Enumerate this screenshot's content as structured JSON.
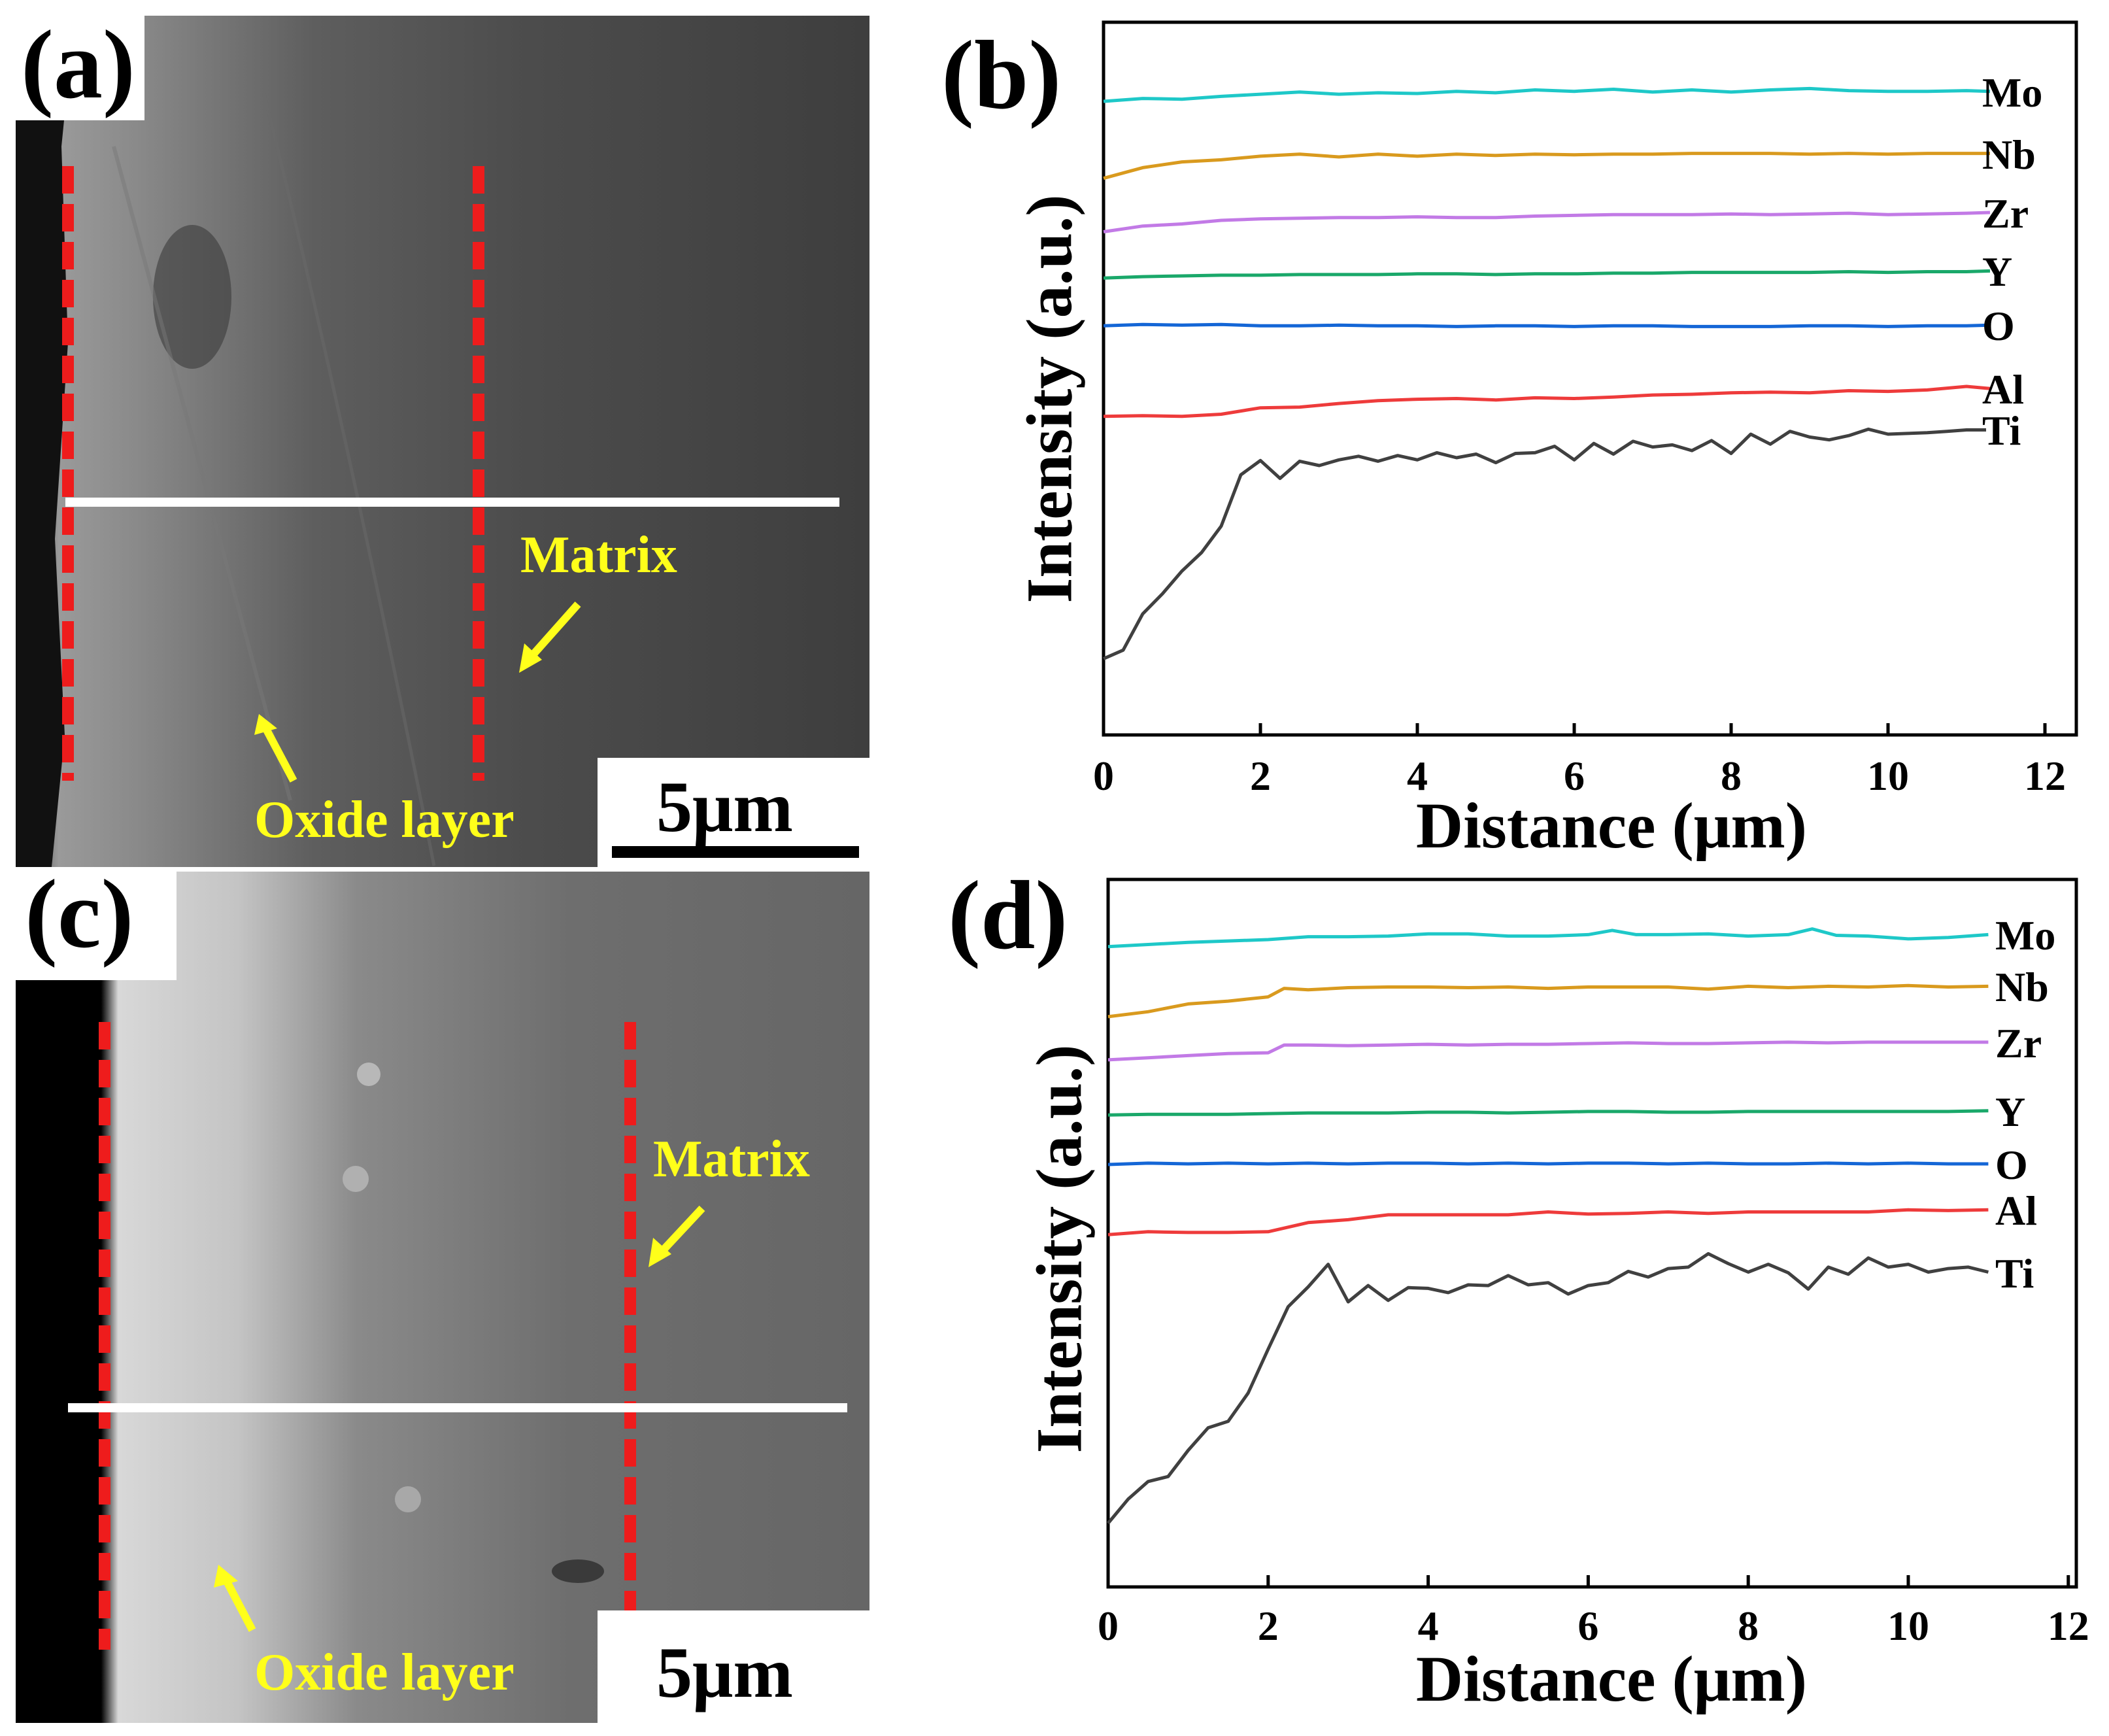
{
  "panels": {
    "a": {
      "label": "(a)",
      "annotations": {
        "matrix": "Matrix",
        "oxide": "Oxide layer"
      },
      "scale_bar": "5μm"
    },
    "c": {
      "label": "(c)",
      "annotations": {
        "matrix": "Matrix",
        "oxide": "Oxide layer"
      },
      "scale_bar": "5μm"
    },
    "b": {
      "label": "(b)"
    },
    "d": {
      "label": "(d)"
    }
  },
  "colors": {
    "Mo": "#1ec8c8",
    "Nb": "#d99a1e",
    "Zr": "#c27ae6",
    "Y": "#1aa86a",
    "O": "#1466d6",
    "Al": "#ee3b3b",
    "Ti": "#404040",
    "annotation": "#ffff1a",
    "dashed_line": "#ee1c1c",
    "scan_line": "#ffffff"
  },
  "chart_data": [
    {
      "id": "b",
      "type": "line",
      "xlabel": "Distance (μm)",
      "ylabel": "Intensity (a.u.)",
      "xlim": [
        0,
        12.4
      ],
      "xticks": [
        0,
        2,
        4,
        6,
        8,
        10,
        12
      ],
      "ylim": [
        0,
        100
      ],
      "series": [
        {
          "name": "Mo",
          "x": [
            0,
            0.5,
            1,
            1.5,
            2,
            2.5,
            3,
            3.5,
            4,
            4.5,
            5,
            5.5,
            6,
            6.5,
            7,
            7.5,
            8,
            8.5,
            9,
            9.5,
            10,
            10.5,
            11,
            11.3
          ],
          "values": [
            88.9,
            89.3,
            89.2,
            89.6,
            89.9,
            90.2,
            89.9,
            90.1,
            90.0,
            90.3,
            90.1,
            90.5,
            90.3,
            90.6,
            90.2,
            90.5,
            90.2,
            90.5,
            90.7,
            90.4,
            90.3,
            90.3,
            90.4,
            90.3
          ]
        },
        {
          "name": "Nb",
          "x": [
            0,
            0.5,
            1,
            1.5,
            2,
            2.5,
            3,
            3.5,
            4,
            4.5,
            5,
            5.5,
            6,
            6.5,
            7,
            7.5,
            8,
            8.5,
            9,
            9.5,
            10,
            10.5,
            11,
            11.3
          ],
          "values": [
            78.1,
            79.6,
            80.4,
            80.7,
            81.2,
            81.5,
            81.1,
            81.5,
            81.2,
            81.5,
            81.3,
            81.5,
            81.4,
            81.5,
            81.5,
            81.6,
            81.6,
            81.6,
            81.5,
            81.6,
            81.5,
            81.6,
            81.6,
            81.6
          ]
        },
        {
          "name": "Zr",
          "x": [
            0,
            0.5,
            1,
            1.5,
            2,
            2.5,
            3,
            3.5,
            4,
            4.5,
            5,
            5.5,
            6,
            6.5,
            7,
            7.5,
            8,
            8.5,
            9,
            9.5,
            10,
            10.5,
            11,
            11.3
          ],
          "values": [
            70.6,
            71.4,
            71.7,
            72.2,
            72.4,
            72.5,
            72.6,
            72.6,
            72.7,
            72.6,
            72.6,
            72.8,
            72.9,
            73.0,
            73.0,
            73.0,
            73.1,
            73.0,
            73.1,
            73.2,
            73.0,
            73.1,
            73.2,
            73.3
          ]
        },
        {
          "name": "Y",
          "x": [
            0,
            0.5,
            1,
            1.5,
            2,
            2.5,
            3,
            3.5,
            4,
            4.5,
            5,
            5.5,
            6,
            6.5,
            7,
            7.5,
            8,
            8.5,
            9,
            9.5,
            10,
            10.5,
            11,
            11.3
          ],
          "values": [
            64.1,
            64.3,
            64.4,
            64.5,
            64.5,
            64.6,
            64.6,
            64.6,
            64.7,
            64.7,
            64.6,
            64.7,
            64.7,
            64.8,
            64.8,
            64.9,
            64.9,
            64.9,
            64.9,
            65.0,
            64.9,
            65.0,
            65.0,
            65.1
          ]
        },
        {
          "name": "O",
          "x": [
            0,
            0.5,
            1,
            1.5,
            2,
            2.5,
            3,
            3.5,
            4,
            4.5,
            5,
            5.5,
            6,
            6.5,
            7,
            7.5,
            8,
            8.5,
            9,
            9.5,
            10,
            10.5,
            11,
            11.3
          ],
          "values": [
            57.4,
            57.6,
            57.5,
            57.6,
            57.4,
            57.4,
            57.5,
            57.4,
            57.4,
            57.3,
            57.4,
            57.4,
            57.3,
            57.4,
            57.4,
            57.3,
            57.3,
            57.3,
            57.4,
            57.4,
            57.3,
            57.4,
            57.4,
            57.5
          ]
        },
        {
          "name": "Al",
          "x": [
            0,
            0.5,
            1,
            1.5,
            2,
            2.5,
            3,
            3.5,
            4,
            4.5,
            5,
            5.5,
            6,
            6.5,
            7,
            7.5,
            8,
            8.5,
            9,
            9.5,
            10,
            10.5,
            11,
            11.3
          ],
          "values": [
            44.7,
            44.8,
            44.7,
            45.0,
            45.9,
            46.0,
            46.5,
            46.9,
            47.1,
            47.2,
            47.0,
            47.3,
            47.2,
            47.4,
            47.7,
            47.8,
            48.0,
            48.1,
            48.0,
            48.3,
            48.2,
            48.4,
            48.9,
            48.6
          ]
        },
        {
          "name": "Ti",
          "x": [
            0,
            0.25,
            0.5,
            0.75,
            1,
            1.25,
            1.5,
            1.75,
            2,
            2.25,
            2.5,
            2.75,
            3,
            3.25,
            3.5,
            3.75,
            4,
            4.25,
            4.5,
            4.75,
            5,
            5.25,
            5.5,
            5.75,
            6,
            6.25,
            6.5,
            6.75,
            7,
            7.25,
            7.5,
            7.75,
            8,
            8.25,
            8.5,
            8.75,
            9,
            9.25,
            9.5,
            9.75,
            10,
            10.25,
            10.5,
            10.75,
            11,
            11.25
          ],
          "values": [
            10.7,
            11.9,
            17.0,
            19.8,
            23.0,
            25.6,
            29.3,
            36.5,
            38.5,
            36.0,
            38.4,
            37.8,
            38.6,
            39.1,
            38.4,
            39.2,
            38.6,
            39.6,
            38.9,
            39.4,
            38.2,
            39.5,
            39.6,
            40.5,
            38.6,
            40.9,
            39.4,
            41.2,
            40.4,
            40.7,
            39.9,
            41.3,
            39.5,
            42.2,
            40.8,
            42.6,
            41.8,
            41.4,
            42.0,
            42.9,
            42.2,
            42.3,
            42.4,
            42.6,
            42.8,
            42.8
          ]
        }
      ]
    },
    {
      "id": "d",
      "type": "line",
      "xlabel": "Distance (μm)",
      "ylabel": "Intensity (a.u.)",
      "xlim": [
        0,
        12.1
      ],
      "xticks": [
        0,
        2,
        4,
        6,
        8,
        10,
        12
      ],
      "ylim": [
        0,
        100
      ],
      "series": [
        {
          "name": "Mo",
          "x": [
            0,
            0.5,
            1,
            1.5,
            2,
            2.5,
            3,
            3.5,
            4,
            4.5,
            5,
            5.5,
            6,
            6.3,
            6.6,
            7,
            7.5,
            8,
            8.5,
            8.8,
            9.1,
            9.5,
            10,
            10.5,
            11
          ],
          "values": [
            90.5,
            90.8,
            91.1,
            91.3,
            91.5,
            91.9,
            91.9,
            92.0,
            92.3,
            92.3,
            92.0,
            92.0,
            92.2,
            92.8,
            92.2,
            92.2,
            92.3,
            92.0,
            92.2,
            93.0,
            92.1,
            92.0,
            91.6,
            91.8,
            92.2
          ]
        },
        {
          "name": "Nb",
          "x": [
            0,
            0.5,
            1,
            1.5,
            2,
            2.2,
            2.5,
            3,
            3.5,
            4,
            4.5,
            5,
            5.5,
            6,
            6.5,
            7,
            7.5,
            8,
            8.5,
            9,
            9.5,
            10,
            10.5,
            11
          ],
          "values": [
            80.6,
            81.3,
            82.4,
            82.8,
            83.4,
            84.6,
            84.4,
            84.7,
            84.8,
            84.8,
            84.7,
            84.8,
            84.6,
            84.8,
            84.8,
            84.8,
            84.5,
            84.9,
            84.7,
            84.9,
            84.8,
            85.0,
            84.8,
            84.9
          ]
        },
        {
          "name": "Zr",
          "x": [
            0,
            0.5,
            1,
            1.5,
            2,
            2.2,
            2.5,
            3,
            3.5,
            4,
            4.5,
            5,
            5.5,
            6,
            6.5,
            7,
            7.5,
            8,
            8.5,
            9,
            9.5,
            10,
            10.5,
            11
          ],
          "values": [
            74.5,
            74.8,
            75.1,
            75.4,
            75.5,
            76.6,
            76.6,
            76.5,
            76.6,
            76.7,
            76.6,
            76.7,
            76.7,
            76.8,
            76.9,
            76.8,
            76.8,
            76.9,
            77.0,
            76.9,
            77.0,
            77.0,
            77.0,
            77.0
          ]
        },
        {
          "name": "Y",
          "x": [
            0,
            0.5,
            1,
            1.5,
            2,
            2.5,
            3,
            3.5,
            4,
            4.5,
            5,
            5.5,
            6,
            6.5,
            7,
            7.5,
            8,
            8.5,
            9,
            9.5,
            10,
            10.5,
            11
          ],
          "values": [
            66.7,
            66.8,
            66.8,
            66.8,
            66.9,
            67.0,
            67.0,
            67.0,
            67.1,
            67.1,
            67.0,
            67.1,
            67.2,
            67.2,
            67.1,
            67.1,
            67.2,
            67.2,
            67.2,
            67.2,
            67.2,
            67.2,
            67.3
          ]
        },
        {
          "name": "O",
          "x": [
            0,
            0.5,
            1,
            1.5,
            2,
            2.5,
            3,
            3.5,
            4,
            4.5,
            5,
            5.5,
            6,
            6.5,
            7,
            7.5,
            8,
            8.5,
            9,
            9.5,
            10,
            10.5,
            11
          ],
          "values": [
            59.7,
            59.9,
            59.8,
            59.9,
            59.8,
            59.9,
            59.8,
            59.9,
            59.9,
            59.8,
            59.9,
            59.8,
            59.9,
            59.9,
            59.8,
            59.9,
            59.8,
            59.8,
            59.9,
            59.8,
            59.9,
            59.8,
            59.8
          ]
        },
        {
          "name": "Al",
          "x": [
            0,
            0.5,
            1,
            1.5,
            2,
            2.5,
            3,
            3.5,
            4,
            4.5,
            5,
            5.5,
            6,
            6.5,
            7,
            7.5,
            8,
            8.5,
            9,
            9.5,
            10,
            10.5,
            11
          ],
          "values": [
            49.8,
            50.2,
            50.1,
            50.1,
            50.2,
            51.5,
            51.9,
            52.6,
            52.6,
            52.6,
            52.6,
            53.0,
            52.7,
            52.8,
            53.0,
            52.8,
            53.0,
            53.0,
            53.0,
            53.0,
            53.3,
            53.2,
            53.3
          ]
        },
        {
          "name": "Ti",
          "x": [
            0,
            0.25,
            0.5,
            0.75,
            1,
            1.25,
            1.5,
            1.75,
            2,
            2.25,
            2.5,
            2.75,
            3,
            3.25,
            3.5,
            3.75,
            4,
            4.25,
            4.5,
            4.75,
            5,
            5.25,
            5.5,
            5.75,
            6,
            6.25,
            6.5,
            6.75,
            7,
            7.25,
            7.5,
            7.75,
            8,
            8.25,
            8.5,
            8.75,
            9,
            9.25,
            9.5,
            9.75,
            10,
            10.25,
            10.5,
            10.75,
            11
          ],
          "values": [
            9.0,
            12.4,
            14.9,
            15.6,
            19.3,
            22.5,
            23.4,
            27.4,
            33.6,
            39.6,
            42.4,
            45.6,
            40.3,
            42.6,
            40.5,
            42.3,
            42.2,
            41.6,
            42.7,
            42.6,
            44.0,
            42.7,
            43.0,
            41.4,
            42.6,
            43.0,
            44.6,
            43.8,
            45.0,
            45.2,
            47.1,
            45.7,
            44.5,
            45.6,
            44.4,
            42.1,
            45.2,
            44.2,
            46.5,
            45.2,
            45.6,
            44.5,
            45.0,
            45.2,
            44.5
          ]
        }
      ]
    }
  ]
}
